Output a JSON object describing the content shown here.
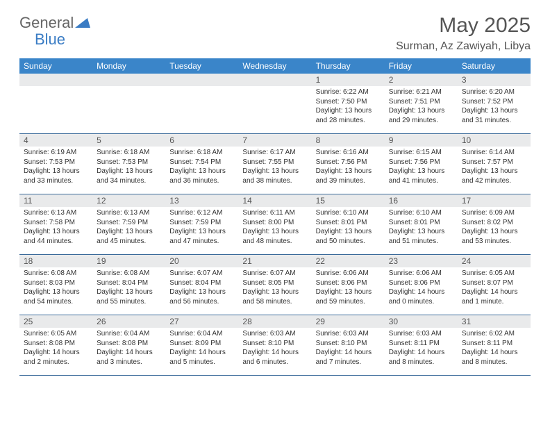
{
  "logo": {
    "part1": "General",
    "part2": "Blue"
  },
  "title": "May 2025",
  "location": "Surman, Az Zawiyah, Libya",
  "colors": {
    "header_bg": "#3a85c9",
    "header_text": "#ffffff",
    "band_grey": "#e9eaeb",
    "row_border": "#3a6a9a",
    "title_color": "#555555",
    "logo_grey": "#666666",
    "logo_blue": "#3a7cc4"
  },
  "weekdays": [
    "Sunday",
    "Monday",
    "Tuesday",
    "Wednesday",
    "Thursday",
    "Friday",
    "Saturday"
  ],
  "weeks": [
    [
      {
        "n": "",
        "rise": "",
        "set": "",
        "day": ""
      },
      {
        "n": "",
        "rise": "",
        "set": "",
        "day": ""
      },
      {
        "n": "",
        "rise": "",
        "set": "",
        "day": ""
      },
      {
        "n": "",
        "rise": "",
        "set": "",
        "day": ""
      },
      {
        "n": "1",
        "rise": "Sunrise: 6:22 AM",
        "set": "Sunset: 7:50 PM",
        "day": "Daylight: 13 hours and 28 minutes."
      },
      {
        "n": "2",
        "rise": "Sunrise: 6:21 AM",
        "set": "Sunset: 7:51 PM",
        "day": "Daylight: 13 hours and 29 minutes."
      },
      {
        "n": "3",
        "rise": "Sunrise: 6:20 AM",
        "set": "Sunset: 7:52 PM",
        "day": "Daylight: 13 hours and 31 minutes."
      }
    ],
    [
      {
        "n": "4",
        "rise": "Sunrise: 6:19 AM",
        "set": "Sunset: 7:53 PM",
        "day": "Daylight: 13 hours and 33 minutes."
      },
      {
        "n": "5",
        "rise": "Sunrise: 6:18 AM",
        "set": "Sunset: 7:53 PM",
        "day": "Daylight: 13 hours and 34 minutes."
      },
      {
        "n": "6",
        "rise": "Sunrise: 6:18 AM",
        "set": "Sunset: 7:54 PM",
        "day": "Daylight: 13 hours and 36 minutes."
      },
      {
        "n": "7",
        "rise": "Sunrise: 6:17 AM",
        "set": "Sunset: 7:55 PM",
        "day": "Daylight: 13 hours and 38 minutes."
      },
      {
        "n": "8",
        "rise": "Sunrise: 6:16 AM",
        "set": "Sunset: 7:56 PM",
        "day": "Daylight: 13 hours and 39 minutes."
      },
      {
        "n": "9",
        "rise": "Sunrise: 6:15 AM",
        "set": "Sunset: 7:56 PM",
        "day": "Daylight: 13 hours and 41 minutes."
      },
      {
        "n": "10",
        "rise": "Sunrise: 6:14 AM",
        "set": "Sunset: 7:57 PM",
        "day": "Daylight: 13 hours and 42 minutes."
      }
    ],
    [
      {
        "n": "11",
        "rise": "Sunrise: 6:13 AM",
        "set": "Sunset: 7:58 PM",
        "day": "Daylight: 13 hours and 44 minutes."
      },
      {
        "n": "12",
        "rise": "Sunrise: 6:13 AM",
        "set": "Sunset: 7:59 PM",
        "day": "Daylight: 13 hours and 45 minutes."
      },
      {
        "n": "13",
        "rise": "Sunrise: 6:12 AM",
        "set": "Sunset: 7:59 PM",
        "day": "Daylight: 13 hours and 47 minutes."
      },
      {
        "n": "14",
        "rise": "Sunrise: 6:11 AM",
        "set": "Sunset: 8:00 PM",
        "day": "Daylight: 13 hours and 48 minutes."
      },
      {
        "n": "15",
        "rise": "Sunrise: 6:10 AM",
        "set": "Sunset: 8:01 PM",
        "day": "Daylight: 13 hours and 50 minutes."
      },
      {
        "n": "16",
        "rise": "Sunrise: 6:10 AM",
        "set": "Sunset: 8:01 PM",
        "day": "Daylight: 13 hours and 51 minutes."
      },
      {
        "n": "17",
        "rise": "Sunrise: 6:09 AM",
        "set": "Sunset: 8:02 PM",
        "day": "Daylight: 13 hours and 53 minutes."
      }
    ],
    [
      {
        "n": "18",
        "rise": "Sunrise: 6:08 AM",
        "set": "Sunset: 8:03 PM",
        "day": "Daylight: 13 hours and 54 minutes."
      },
      {
        "n": "19",
        "rise": "Sunrise: 6:08 AM",
        "set": "Sunset: 8:04 PM",
        "day": "Daylight: 13 hours and 55 minutes."
      },
      {
        "n": "20",
        "rise": "Sunrise: 6:07 AM",
        "set": "Sunset: 8:04 PM",
        "day": "Daylight: 13 hours and 56 minutes."
      },
      {
        "n": "21",
        "rise": "Sunrise: 6:07 AM",
        "set": "Sunset: 8:05 PM",
        "day": "Daylight: 13 hours and 58 minutes."
      },
      {
        "n": "22",
        "rise": "Sunrise: 6:06 AM",
        "set": "Sunset: 8:06 PM",
        "day": "Daylight: 13 hours and 59 minutes."
      },
      {
        "n": "23",
        "rise": "Sunrise: 6:06 AM",
        "set": "Sunset: 8:06 PM",
        "day": "Daylight: 14 hours and 0 minutes."
      },
      {
        "n": "24",
        "rise": "Sunrise: 6:05 AM",
        "set": "Sunset: 8:07 PM",
        "day": "Daylight: 14 hours and 1 minute."
      }
    ],
    [
      {
        "n": "25",
        "rise": "Sunrise: 6:05 AM",
        "set": "Sunset: 8:08 PM",
        "day": "Daylight: 14 hours and 2 minutes."
      },
      {
        "n": "26",
        "rise": "Sunrise: 6:04 AM",
        "set": "Sunset: 8:08 PM",
        "day": "Daylight: 14 hours and 3 minutes."
      },
      {
        "n": "27",
        "rise": "Sunrise: 6:04 AM",
        "set": "Sunset: 8:09 PM",
        "day": "Daylight: 14 hours and 5 minutes."
      },
      {
        "n": "28",
        "rise": "Sunrise: 6:03 AM",
        "set": "Sunset: 8:10 PM",
        "day": "Daylight: 14 hours and 6 minutes."
      },
      {
        "n": "29",
        "rise": "Sunrise: 6:03 AM",
        "set": "Sunset: 8:10 PM",
        "day": "Daylight: 14 hours and 7 minutes."
      },
      {
        "n": "30",
        "rise": "Sunrise: 6:03 AM",
        "set": "Sunset: 8:11 PM",
        "day": "Daylight: 14 hours and 8 minutes."
      },
      {
        "n": "31",
        "rise": "Sunrise: 6:02 AM",
        "set": "Sunset: 8:11 PM",
        "day": "Daylight: 14 hours and 8 minutes."
      }
    ]
  ]
}
